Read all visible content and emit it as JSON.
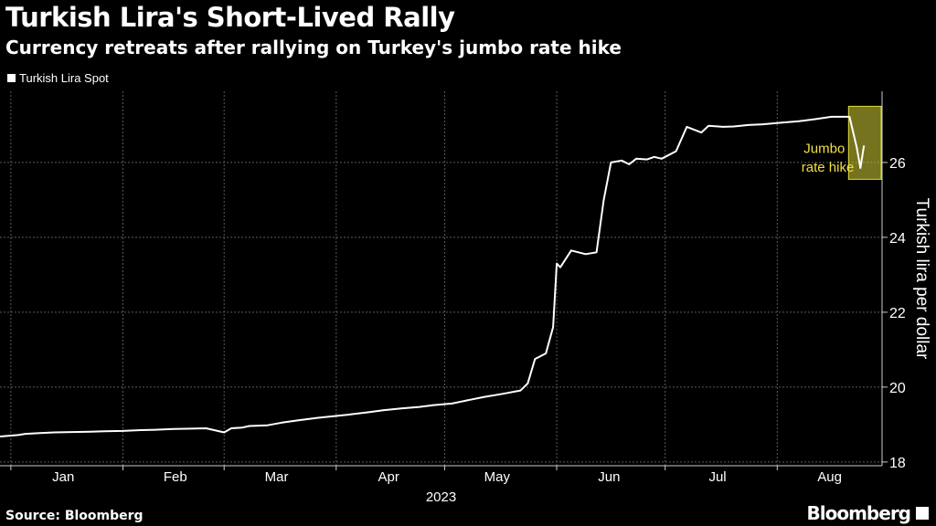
{
  "title": "Turkish Lira's Short-Lived Rally",
  "subtitle": "Currency retreats after rallying on Turkey's jumbo rate hike",
  "legend_label": "Turkish Lira Spot",
  "source": "Source: Bloomberg",
  "brand": "Bloomberg",
  "annotation": {
    "line1": "Jumbo",
    "line2": "rate hike"
  },
  "colors": {
    "background": "#000000",
    "line": "#ffffff",
    "highlight": "#c8c42c",
    "annotation_text": "#f0e040"
  },
  "chart_data": {
    "type": "line",
    "title": "Turkish Lira's Short-Lived Rally",
    "subtitle": "Currency retreats after rallying on Turkey's jumbo rate hike",
    "xlabel": "2023",
    "ylabel": "Turkish lira per dollar",
    "x_ticks": [
      "Jan",
      "Feb",
      "Mar",
      "Apr",
      "May",
      "Jun",
      "Jul",
      "Aug"
    ],
    "y_ticks": [
      18,
      20,
      22,
      24,
      26
    ],
    "ylim": [
      17.9,
      27.9
    ],
    "xlim": [
      "2022-12-29",
      "2023-08-30"
    ],
    "grid": true,
    "legend": "top-left",
    "series": [
      {
        "name": "Turkish Lira Spot",
        "x": [
          "2022-12-29",
          "2023-01-03",
          "2023-01-05",
          "2023-01-09",
          "2023-01-13",
          "2023-01-18",
          "2023-01-23",
          "2023-01-27",
          "2023-02-01",
          "2023-02-06",
          "2023-02-10",
          "2023-02-15",
          "2023-02-20",
          "2023-02-24",
          "2023-03-01",
          "2023-03-03",
          "2023-03-06",
          "2023-03-08",
          "2023-03-13",
          "2023-03-17",
          "2023-03-22",
          "2023-03-27",
          "2023-03-31",
          "2023-04-05",
          "2023-04-10",
          "2023-04-14",
          "2023-04-19",
          "2023-04-24",
          "2023-04-28",
          "2023-05-03",
          "2023-05-08",
          "2023-05-12",
          "2023-05-17",
          "2023-05-22",
          "2023-05-24",
          "2023-05-26",
          "2023-05-29",
          "2023-05-31",
          "2023-06-01",
          "2023-06-02",
          "2023-06-05",
          "2023-06-07",
          "2023-06-09",
          "2023-06-12",
          "2023-06-14",
          "2023-06-16",
          "2023-06-19",
          "2023-06-21",
          "2023-06-23",
          "2023-06-26",
          "2023-06-28",
          "2023-06-30",
          "2023-07-04",
          "2023-07-07",
          "2023-07-11",
          "2023-07-13",
          "2023-07-17",
          "2023-07-20",
          "2023-07-24",
          "2023-07-28",
          "2023-08-02",
          "2023-08-07",
          "2023-08-11",
          "2023-08-16",
          "2023-08-21",
          "2023-08-23",
          "2023-08-24",
          "2023-08-25"
        ],
        "values": [
          18.68,
          18.72,
          18.75,
          18.77,
          18.79,
          18.8,
          18.81,
          18.82,
          18.83,
          18.85,
          18.86,
          18.88,
          18.89,
          18.9,
          18.79,
          18.9,
          18.92,
          18.96,
          18.98,
          19.05,
          19.12,
          19.18,
          19.22,
          19.27,
          19.33,
          19.38,
          19.43,
          19.47,
          19.52,
          19.56,
          19.66,
          19.74,
          19.82,
          19.91,
          20.1,
          20.75,
          20.9,
          21.6,
          23.3,
          23.2,
          23.65,
          23.6,
          23.55,
          23.6,
          25.0,
          26.0,
          26.05,
          25.95,
          26.1,
          26.08,
          26.15,
          26.1,
          26.3,
          26.95,
          26.8,
          26.98,
          26.95,
          26.96,
          27.0,
          27.02,
          27.06,
          27.1,
          27.15,
          27.22,
          27.22,
          26.4,
          25.85,
          26.45
        ]
      }
    ]
  }
}
